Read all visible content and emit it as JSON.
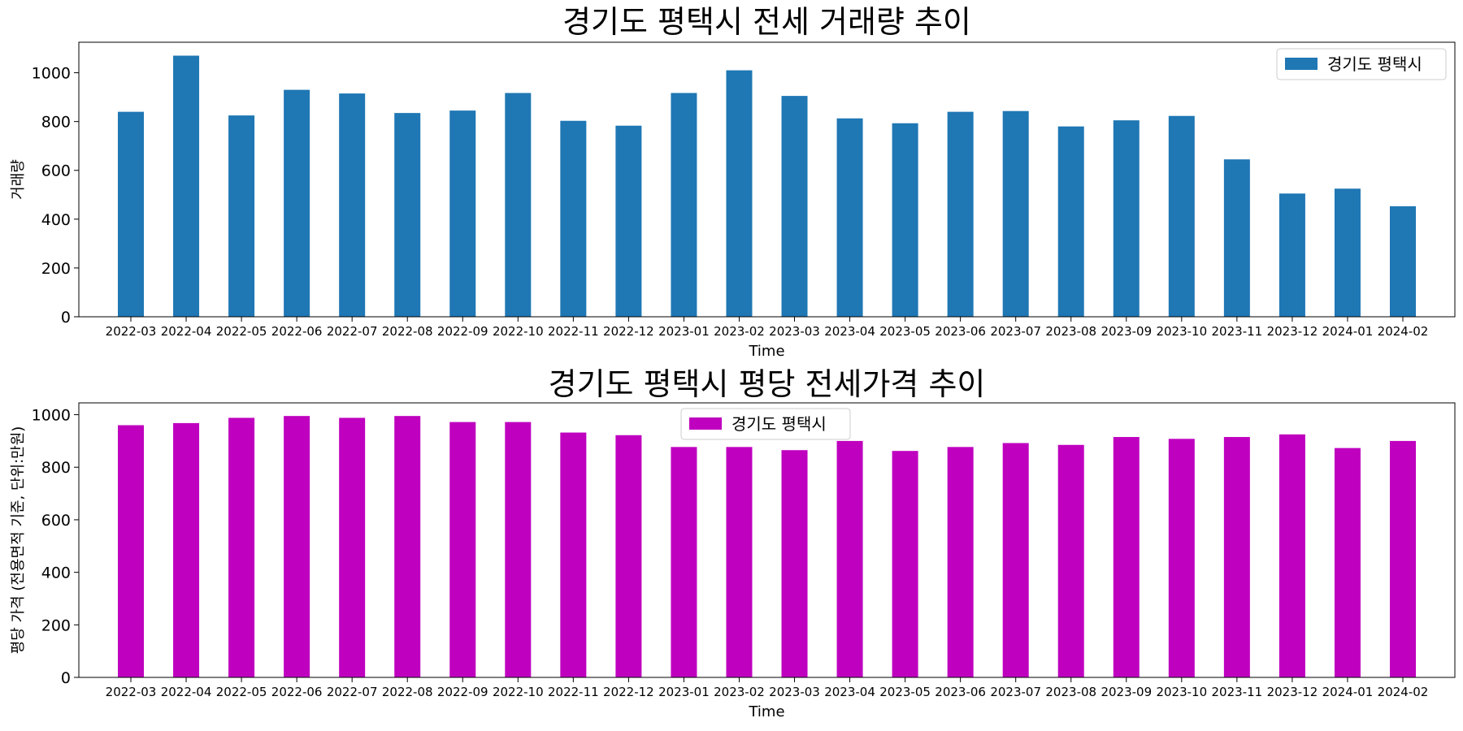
{
  "chart_data": [
    {
      "type": "bar",
      "title": "경기도 평택시 전세 거래량 추이",
      "xlabel": "Time",
      "ylabel": "거래량",
      "ylim": [
        0,
        1125
      ],
      "yticks": [
        0,
        200,
        400,
        600,
        800,
        1000
      ],
      "legend": "top-right",
      "grid": false,
      "color": "#1f77b4",
      "categories": [
        "2022-03",
        "2022-04",
        "2022-05",
        "2022-06",
        "2022-07",
        "2022-08",
        "2022-09",
        "2022-10",
        "2022-11",
        "2022-12",
        "2023-01",
        "2023-02",
        "2023-03",
        "2023-04",
        "2023-05",
        "2023-06",
        "2023-07",
        "2023-08",
        "2023-09",
        "2023-10",
        "2023-11",
        "2023-12",
        "2024-01",
        "2024-02"
      ],
      "series": [
        {
          "name": "경기도 평택시",
          "values": [
            840,
            1070,
            825,
            930,
            915,
            835,
            845,
            917,
            803,
            783,
            917,
            1010,
            905,
            813,
            793,
            840,
            843,
            780,
            805,
            823,
            645,
            505,
            525,
            453
          ]
        }
      ]
    },
    {
      "type": "bar",
      "title": "경기도 평택시 평당 전세가격 추이",
      "xlabel": "Time",
      "ylabel": "평당 가격 (전용면적 기준, 단위:만원)",
      "ylim": [
        0,
        1045
      ],
      "yticks": [
        0,
        200,
        400,
        600,
        800,
        1000
      ],
      "legend": "top-center",
      "grid": false,
      "color": "#bf00bf",
      "categories": [
        "2022-03",
        "2022-04",
        "2022-05",
        "2022-06",
        "2022-07",
        "2022-08",
        "2022-09",
        "2022-10",
        "2022-11",
        "2022-12",
        "2023-01",
        "2023-02",
        "2023-03",
        "2023-04",
        "2023-05",
        "2023-06",
        "2023-07",
        "2023-08",
        "2023-09",
        "2023-10",
        "2023-11",
        "2023-12",
        "2024-01",
        "2024-02"
      ],
      "series": [
        {
          "name": "경기도 평택시",
          "values": [
            960,
            968,
            988,
            995,
            988,
            995,
            972,
            972,
            932,
            922,
            877,
            877,
            865,
            900,
            862,
            877,
            892,
            885,
            915,
            908,
            915,
            925,
            873,
            900
          ]
        }
      ]
    }
  ]
}
